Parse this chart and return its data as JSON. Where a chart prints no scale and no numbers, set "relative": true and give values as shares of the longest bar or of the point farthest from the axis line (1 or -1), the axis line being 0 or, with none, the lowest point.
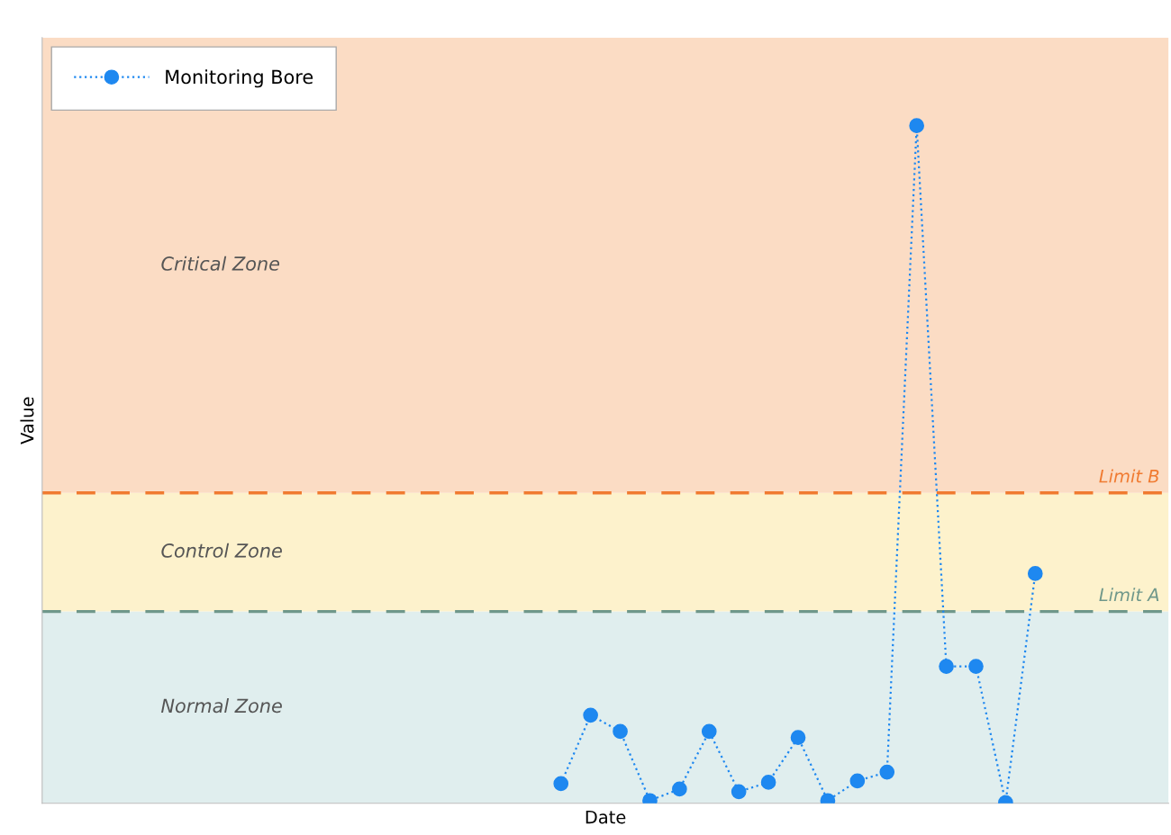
{
  "chart_data": {
    "type": "line",
    "relative": true,
    "xlabel": "Date",
    "ylabel": "Value",
    "categories": [
      null,
      null,
      null,
      null,
      null,
      null,
      null,
      null,
      null,
      null,
      null,
      null,
      null,
      null,
      null,
      null,
      null,
      null,
      null,
      null,
      null,
      null,
      null,
      null,
      null,
      null,
      null,
      null,
      null,
      null,
      null,
      null,
      null,
      null,
      null,
      null,
      null,
      null
    ],
    "series": [
      {
        "name": "Monitoring Bore",
        "color": "#1e88f0",
        "values": [
          null,
          null,
          null,
          null,
          null,
          null,
          null,
          null,
          null,
          null,
          null,
          null,
          null,
          null,
          null,
          null,
          null,
          0.029,
          0.13,
          0.106,
          0.004,
          0.021,
          0.106,
          0.017,
          0.031,
          0.097,
          0.004,
          0.033,
          0.046,
          1,
          0.202,
          0.202,
          0.001,
          0.339,
          null,
          null,
          null,
          null
        ]
      }
    ],
    "bands": [
      {
        "axis": "y",
        "from": 0,
        "to": 0.283,
        "label": "Normal Zone",
        "color": "#e0eeee"
      },
      {
        "axis": "y",
        "from": 0.283,
        "to": 0.458,
        "label": "Control Zone",
        "color": "#fdf2cc"
      },
      {
        "axis": "y",
        "from": 0.458,
        "to": 1.13,
        "label": "Critical Zone",
        "color": "#fbdcc4"
      }
    ],
    "ref_lines": [
      {
        "axis": "y",
        "value": 0.458,
        "label": "Limit B",
        "color": "#f07a30",
        "line_style": "dashed"
      },
      {
        "axis": "y",
        "value": 0.283,
        "label": "Limit A",
        "color": "#6f978a",
        "line_style": "dashed"
      }
    ],
    "marker": "circle",
    "line_style": "dotted",
    "legend": "top left",
    "grid": false
  }
}
